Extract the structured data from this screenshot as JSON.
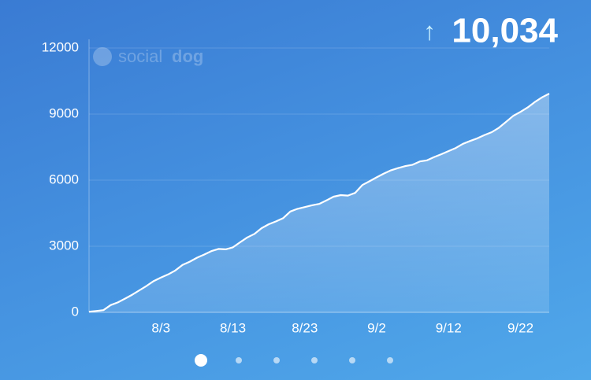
{
  "header": {
    "arrow": "↑",
    "total": "10,034"
  },
  "watermark": {
    "light": "social",
    "bold": "dog"
  },
  "chart_data": {
    "type": "area",
    "color": "#ffffff",
    "categories": [
      null,
      null,
      null,
      null,
      null,
      null,
      null,
      null,
      null,
      null,
      "8/3",
      null,
      null,
      null,
      null,
      null,
      null,
      null,
      null,
      null,
      "8/13",
      null,
      null,
      null,
      null,
      null,
      null,
      null,
      null,
      null,
      "8/23",
      null,
      null,
      null,
      null,
      null,
      null,
      null,
      null,
      null,
      "9/2",
      null,
      null,
      null,
      null,
      null,
      null,
      null,
      null,
      null,
      "9/12",
      null,
      null,
      null,
      null,
      null,
      null,
      null,
      null,
      null,
      "9/22",
      null,
      null,
      null,
      null
    ],
    "values": [
      30,
      60,
      100,
      330,
      450,
      620,
      800,
      1000,
      1200,
      1420,
      1580,
      1720,
      1900,
      2150,
      2300,
      2480,
      2620,
      2780,
      2880,
      2860,
      2950,
      3180,
      3400,
      3560,
      3820,
      4000,
      4130,
      4280,
      4580,
      4700,
      4780,
      4860,
      4920,
      5080,
      5250,
      5320,
      5300,
      5420,
      5780,
      5950,
      6130,
      6300,
      6450,
      6550,
      6640,
      6700,
      6850,
      6900,
      7050,
      7180,
      7320,
      7460,
      7650,
      7780,
      7900,
      8050,
      8180,
      8380,
      8650,
      8920,
      9100,
      9300,
      9550,
      9760,
      9930
    ],
    "ylim": [
      0,
      12000
    ],
    "yticks": [
      0,
      3000,
      6000,
      9000,
      12000
    ],
    "grid": true
  }
}
